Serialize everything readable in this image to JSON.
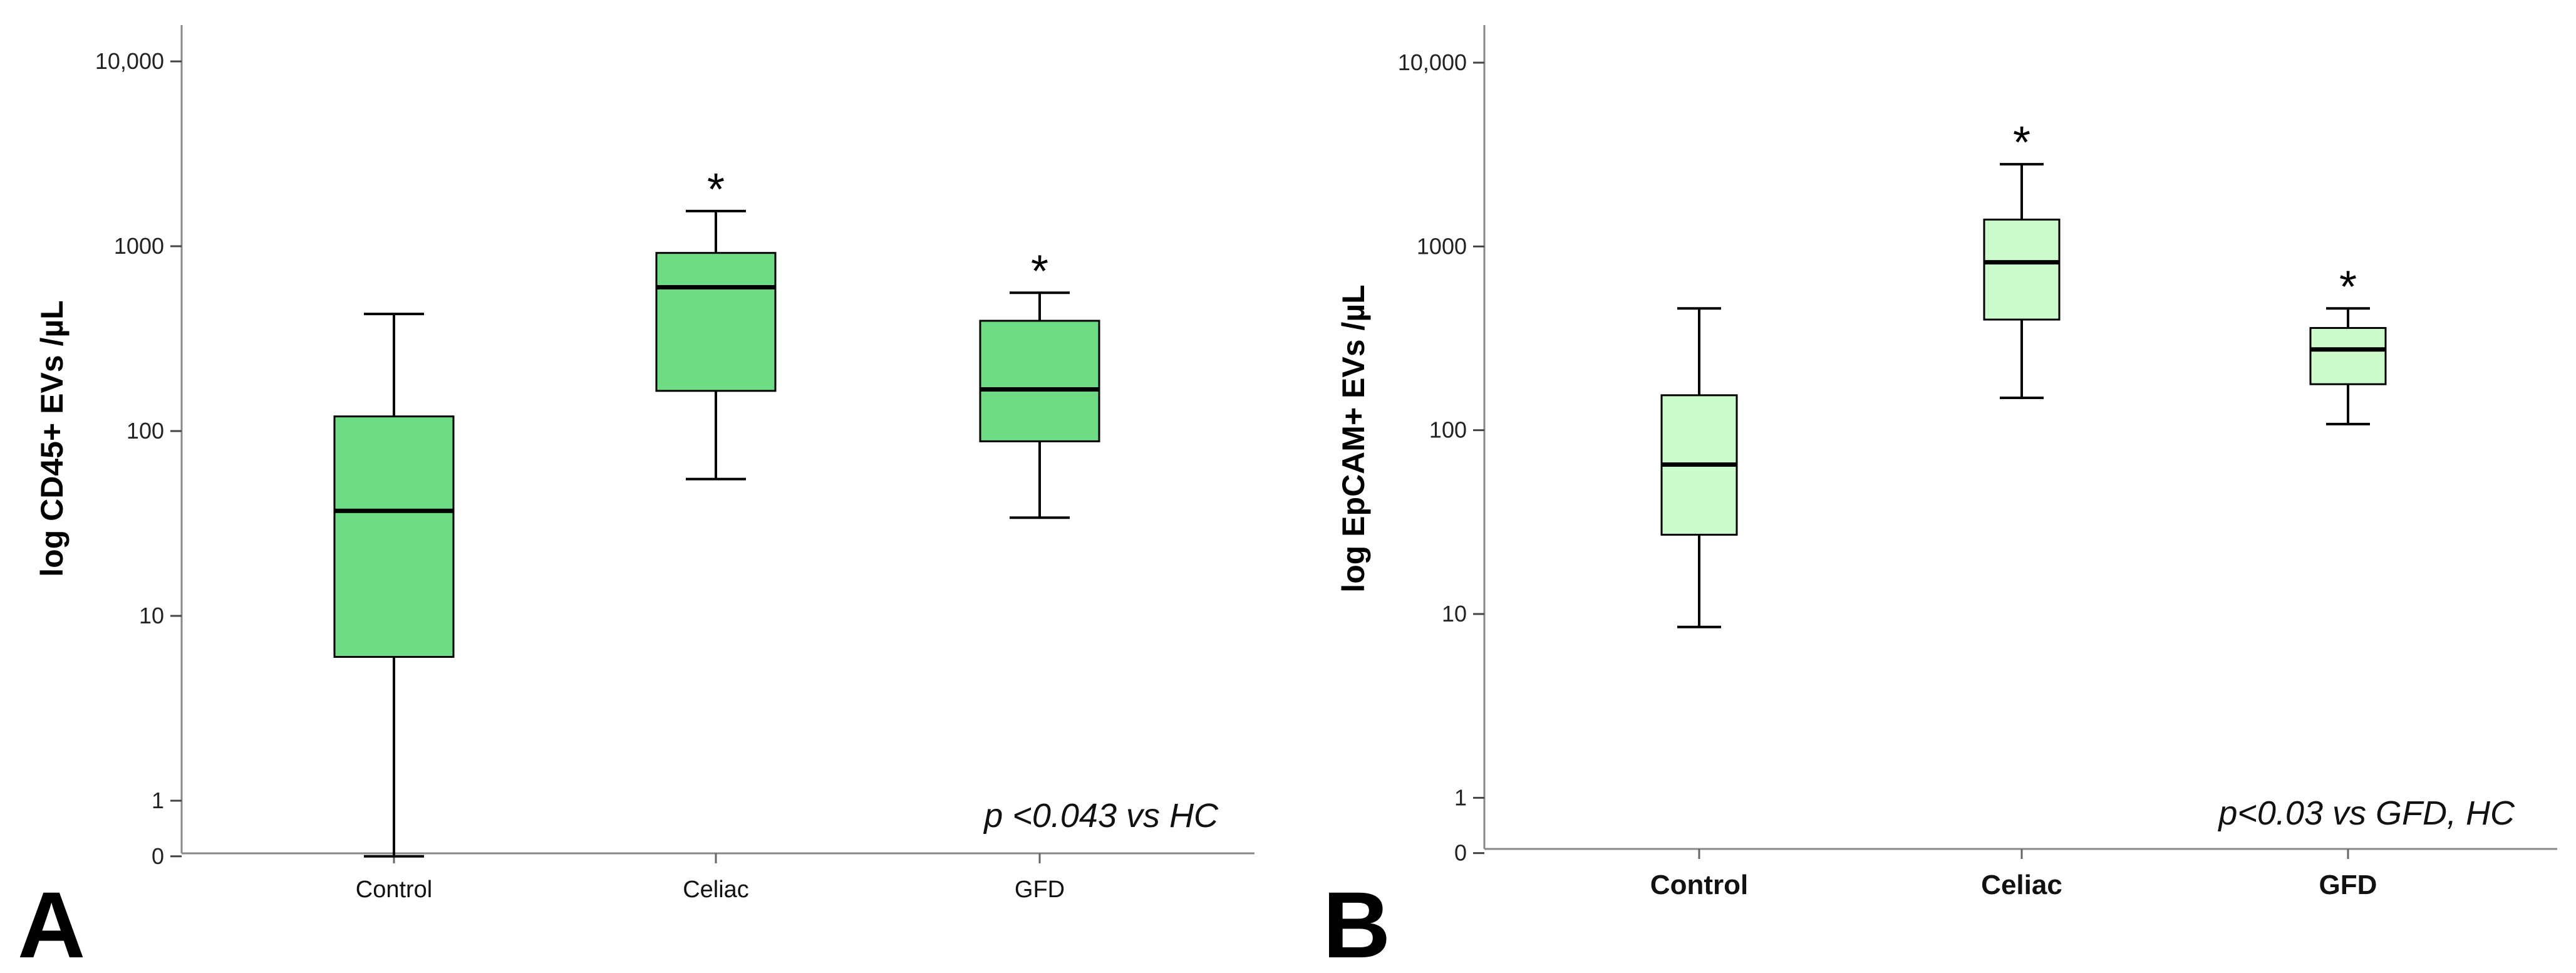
{
  "chart_data": [
    {
      "type": "boxplot",
      "panel_label": "A",
      "ylabel": "log CD45+ EVs /µL",
      "xlabel": "",
      "yscale": "log",
      "ylim": [
        0.45,
        14000
      ],
      "yticks": [
        {
          "value": 0.5,
          "label": "0"
        },
        {
          "value": 1,
          "label": "1"
        },
        {
          "value": 10,
          "label": "10"
        },
        {
          "value": 100,
          "label": "100"
        },
        {
          "value": 1000,
          "label": "1000"
        },
        {
          "value": 10000,
          "label": "10,000"
        }
      ],
      "categories": [
        "Control",
        "Celiac",
        "GFD"
      ],
      "boxes": [
        {
          "category": "Control",
          "whisker_low": 0.5,
          "q1": 6,
          "median": 37,
          "q3": 120,
          "whisker_high": 430,
          "marker": ""
        },
        {
          "category": "Celiac",
          "whisker_low": 55,
          "q1": 165,
          "median": 600,
          "q3": 920,
          "whisker_high": 1550,
          "marker": "*"
        },
        {
          "category": "GFD",
          "whisker_low": 34,
          "q1": 88,
          "median": 168,
          "q3": 395,
          "whisker_high": 560,
          "marker": "*"
        }
      ],
      "box_color": "#6ddc85",
      "annotation": "p <0.043 vs HC"
    },
    {
      "type": "boxplot",
      "panel_label": "B",
      "ylabel": "log EpCAM+ EVs /µL",
      "xlabel": "",
      "yscale": "log",
      "ylim": [
        0.45,
        14000
      ],
      "yticks": [
        {
          "value": 0.5,
          "label": "0"
        },
        {
          "value": 1,
          "label": "1"
        },
        {
          "value": 10,
          "label": "10"
        },
        {
          "value": 100,
          "label": "100"
        },
        {
          "value": 1000,
          "label": "1000"
        },
        {
          "value": 10000,
          "label": "10,000"
        }
      ],
      "categories": [
        "Control",
        "Celiac",
        "GFD"
      ],
      "boxes": [
        {
          "category": "Control",
          "whisker_low": 8.5,
          "q1": 27,
          "median": 65,
          "q3": 155,
          "whisker_high": 460,
          "marker": ""
        },
        {
          "category": "Celiac",
          "whisker_low": 150,
          "q1": 400,
          "median": 820,
          "q3": 1400,
          "whisker_high": 2800,
          "marker": "*"
        },
        {
          "category": "GFD",
          "whisker_low": 108,
          "q1": 178,
          "median": 275,
          "q3": 360,
          "whisker_high": 460,
          "marker": "*"
        }
      ],
      "box_color": "#ccfccc",
      "annotation": "p<0.03 vs GFD, HC"
    }
  ]
}
